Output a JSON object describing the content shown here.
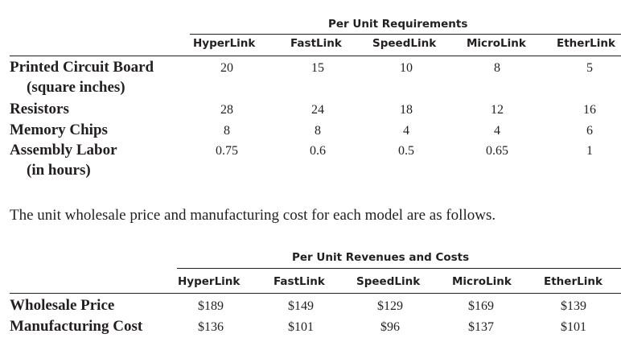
{
  "table1": {
    "group_header": "Per Unit Requirements",
    "columns": [
      "HyperLink",
      "FastLink",
      "SpeedLink",
      "MicroLink",
      "EtherLink"
    ],
    "rows": [
      {
        "label": [
          "Printed Circuit Board",
          "(square inches)"
        ],
        "values": [
          "20",
          "15",
          "10",
          "8",
          "5"
        ]
      },
      {
        "label": [
          "Resistors"
        ],
        "values": [
          "28",
          "24",
          "18",
          "12",
          "16"
        ]
      },
      {
        "label": [
          "Memory Chips"
        ],
        "values": [
          "8",
          "8",
          "4",
          "4",
          "6"
        ]
      },
      {
        "label": [
          "Assembly Labor",
          "(in hours)"
        ],
        "values": [
          "0.75",
          "0.6",
          "0.5",
          "0.65",
          "1"
        ]
      }
    ]
  },
  "paragraph": "The unit wholesale price and manufacturing cost for each model are as follows.",
  "table2": {
    "group_header": "Per Unit Revenues and Costs",
    "columns": [
      "HyperLink",
      "FastLink",
      "SpeedLink",
      "MicroLink",
      "EtherLink"
    ],
    "rows": [
      {
        "label": "Wholesale Price",
        "values": [
          "$189",
          "$149",
          "$129",
          "$169",
          "$139"
        ]
      },
      {
        "label": "Manufacturing Cost",
        "values": [
          "$136",
          "$101",
          "$96",
          "$137",
          "$101"
        ]
      }
    ]
  }
}
